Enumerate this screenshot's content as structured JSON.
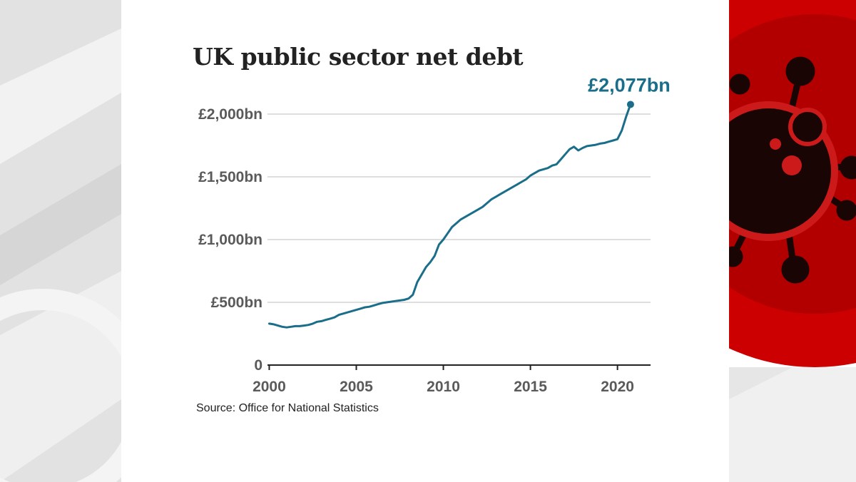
{
  "source": "Source: Office for National Statistics",
  "colors": {
    "line": "#1a6e8a",
    "grid": "#cccccc",
    "text": "#5a5a5a",
    "accent_red": "#cc0000"
  },
  "decorations": {
    "right_panel_icon": "coronavirus-icon"
  },
  "chart_data": {
    "type": "line",
    "title": "UK public sector net debt",
    "xlabel": "",
    "ylabel": "",
    "xlim": [
      1999.9,
      2021.9
    ],
    "ylim": [
      0,
      2000
    ],
    "x_ticks": [
      2000,
      2005,
      2010,
      2015,
      2020
    ],
    "x_tick_labels": [
      "2000",
      "2005",
      "2010",
      "2015",
      "2020"
    ],
    "y_ticks": [
      0,
      500,
      1000,
      1500,
      2000
    ],
    "y_tick_labels": [
      "0",
      "£500bn",
      "£1,000bn",
      "£1,500bn",
      "£2,000bn"
    ],
    "grid": true,
    "end_label": "£2,077bn",
    "series": [
      {
        "x": [
          2000.0,
          2000.25,
          2000.5,
          2000.75,
          2001.0,
          2001.25,
          2001.5,
          2001.75,
          2002.0,
          2002.25,
          2002.5,
          2002.75,
          2003.0,
          2003.25,
          2003.5,
          2003.75,
          2004.0,
          2004.25,
          2004.5,
          2004.75,
          2005.0,
          2005.25,
          2005.5,
          2005.75,
          2006.0,
          2006.25,
          2006.5,
          2006.75,
          2007.0,
          2007.25,
          2007.5,
          2007.75,
          2008.0,
          2008.25,
          2008.5,
          2008.75,
          2009.0,
          2009.25,
          2009.5,
          2009.75,
          2010.0,
          2010.25,
          2010.5,
          2010.75,
          2011.0,
          2011.25,
          2011.5,
          2011.75,
          2012.0,
          2012.25,
          2012.5,
          2012.75,
          2013.0,
          2013.25,
          2013.5,
          2013.75,
          2014.0,
          2014.25,
          2014.5,
          2014.75,
          2015.0,
          2015.25,
          2015.5,
          2015.75,
          2016.0,
          2016.25,
          2016.5,
          2016.75,
          2017.0,
          2017.25,
          2017.5,
          2017.75,
          2018.0,
          2018.25,
          2018.5,
          2018.75,
          2019.0,
          2019.25,
          2019.5,
          2019.75,
          2020.0,
          2020.25,
          2020.5,
          2020.75
        ],
        "values": [
          330,
          325,
          315,
          305,
          300,
          305,
          310,
          310,
          315,
          320,
          330,
          345,
          350,
          360,
          370,
          380,
          400,
          410,
          420,
          430,
          440,
          450,
          460,
          465,
          475,
          485,
          495,
          500,
          505,
          510,
          515,
          520,
          530,
          560,
          660,
          720,
          780,
          820,
          870,
          960,
          1000,
          1050,
          1100,
          1130,
          1160,
          1180,
          1200,
          1220,
          1240,
          1260,
          1290,
          1320,
          1340,
          1360,
          1380,
          1400,
          1420,
          1440,
          1460,
          1480,
          1510,
          1530,
          1550,
          1560,
          1570,
          1590,
          1600,
          1640,
          1680,
          1720,
          1740,
          1710,
          1730,
          1745,
          1750,
          1755,
          1765,
          1770,
          1780,
          1790,
          1800,
          1870,
          1980,
          2077
        ]
      }
    ]
  }
}
